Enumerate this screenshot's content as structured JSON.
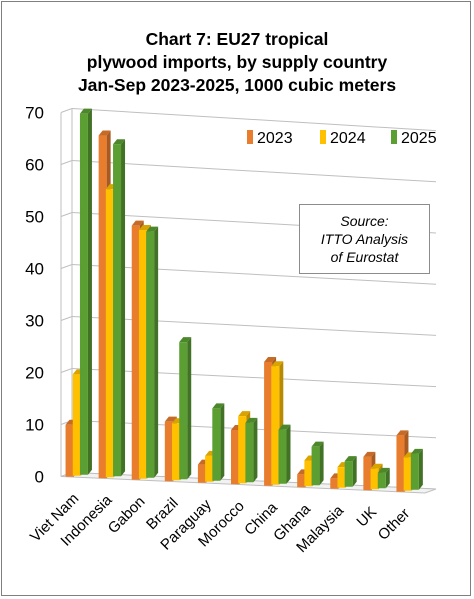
{
  "chart_data": {
    "type": "bar",
    "title_lines": [
      "Chart 7: EU27 tropical",
      "plywood imports, by supply country",
      "Jan-Sep 2023-2025, 1000 cubic meters"
    ],
    "categories": [
      "Viet Nam",
      "Indonesia",
      "Gabon",
      "Brazil",
      "Paraguay",
      "Morocco",
      "China",
      "Ghana",
      "Malaysia",
      "UK",
      "Other"
    ],
    "series": [
      {
        "name": "2023",
        "color": "#e87d2e",
        "values": [
          10.0,
          66.0,
          49.0,
          11.5,
          3.5,
          10.5,
          24.0,
          2.5,
          2.0,
          6.5,
          11.0
        ]
      },
      {
        "name": "2024",
        "color": "#ffc000",
        "values": [
          19.5,
          55.5,
          48.0,
          11.0,
          5.0,
          13.0,
          23.0,
          5.0,
          4.0,
          4.0,
          6.5
        ]
      },
      {
        "name": "2025",
        "color": "#5b9f33",
        "values": [
          69.5,
          64.0,
          47.5,
          26.5,
          14.0,
          11.5,
          10.5,
          7.5,
          5.0,
          3.0,
          7.0
        ]
      }
    ],
    "yticks": [
      0,
      10,
      20,
      30,
      40,
      50,
      60,
      70
    ],
    "ylim": [
      0,
      70
    ],
    "grid": true,
    "legend_position": "top-right",
    "annotation_lines": [
      "Source:",
      "ITTO Analysis",
      "of Eurostat"
    ]
  }
}
